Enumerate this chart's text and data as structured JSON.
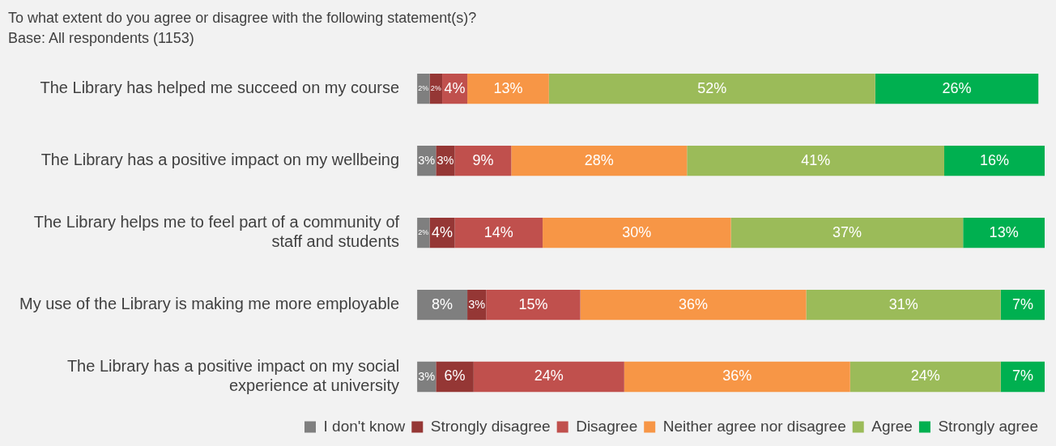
{
  "chart_data": {
    "type": "bar",
    "orientation": "horizontal",
    "stacked": true,
    "title": "To what extent do you agree or disagree with the following statement(s)?",
    "subtitle": "Base: All respondents (1153)",
    "categories": [
      "The Library has helped me succeed on my course",
      "The Library has a positive impact on my wellbeing",
      "The Library helps me to feel part of a community of staff and students",
      "My use of the Library is making me more employable",
      "The Library has a positive impact on my social experience at university"
    ],
    "series": [
      {
        "name": "I don't know",
        "color": "#7f7f7f",
        "values": [
          2,
          3,
          2,
          8,
          3
        ],
        "value_labels": [
          "2%",
          "3%",
          "2%",
          "8%",
          "3%"
        ]
      },
      {
        "name": "Strongly disagree",
        "color": "#953735",
        "values": [
          2,
          3,
          4,
          3,
          6
        ],
        "value_labels": [
          "2%",
          "3%",
          "4%",
          "3%",
          "6%"
        ]
      },
      {
        "name": "Disagree",
        "color": "#c0504d",
        "values": [
          4,
          9,
          14,
          15,
          24
        ],
        "value_labels": [
          "4%",
          "9%",
          "14%",
          "15%",
          "24%"
        ]
      },
      {
        "name": "Neither agree nor disagree",
        "color": "#f79646",
        "values": [
          13,
          28,
          30,
          36,
          36
        ],
        "value_labels": [
          "13%",
          "28%",
          "30%",
          "36%",
          "36%"
        ]
      },
      {
        "name": "Agree",
        "color": "#9bbb59",
        "values": [
          52,
          41,
          37,
          31,
          24
        ],
        "value_labels": [
          "52%",
          "41%",
          "37%",
          "31%",
          "24%"
        ]
      },
      {
        "name": "Strongly agree",
        "color": "#00b050",
        "values": [
          26,
          16,
          13,
          7,
          7
        ],
        "value_labels": [
          "26%",
          "16%",
          "13%",
          "7%",
          "7%"
        ]
      }
    ],
    "tick_labels": "y",
    "grid": false,
    "legend": "bottom"
  }
}
